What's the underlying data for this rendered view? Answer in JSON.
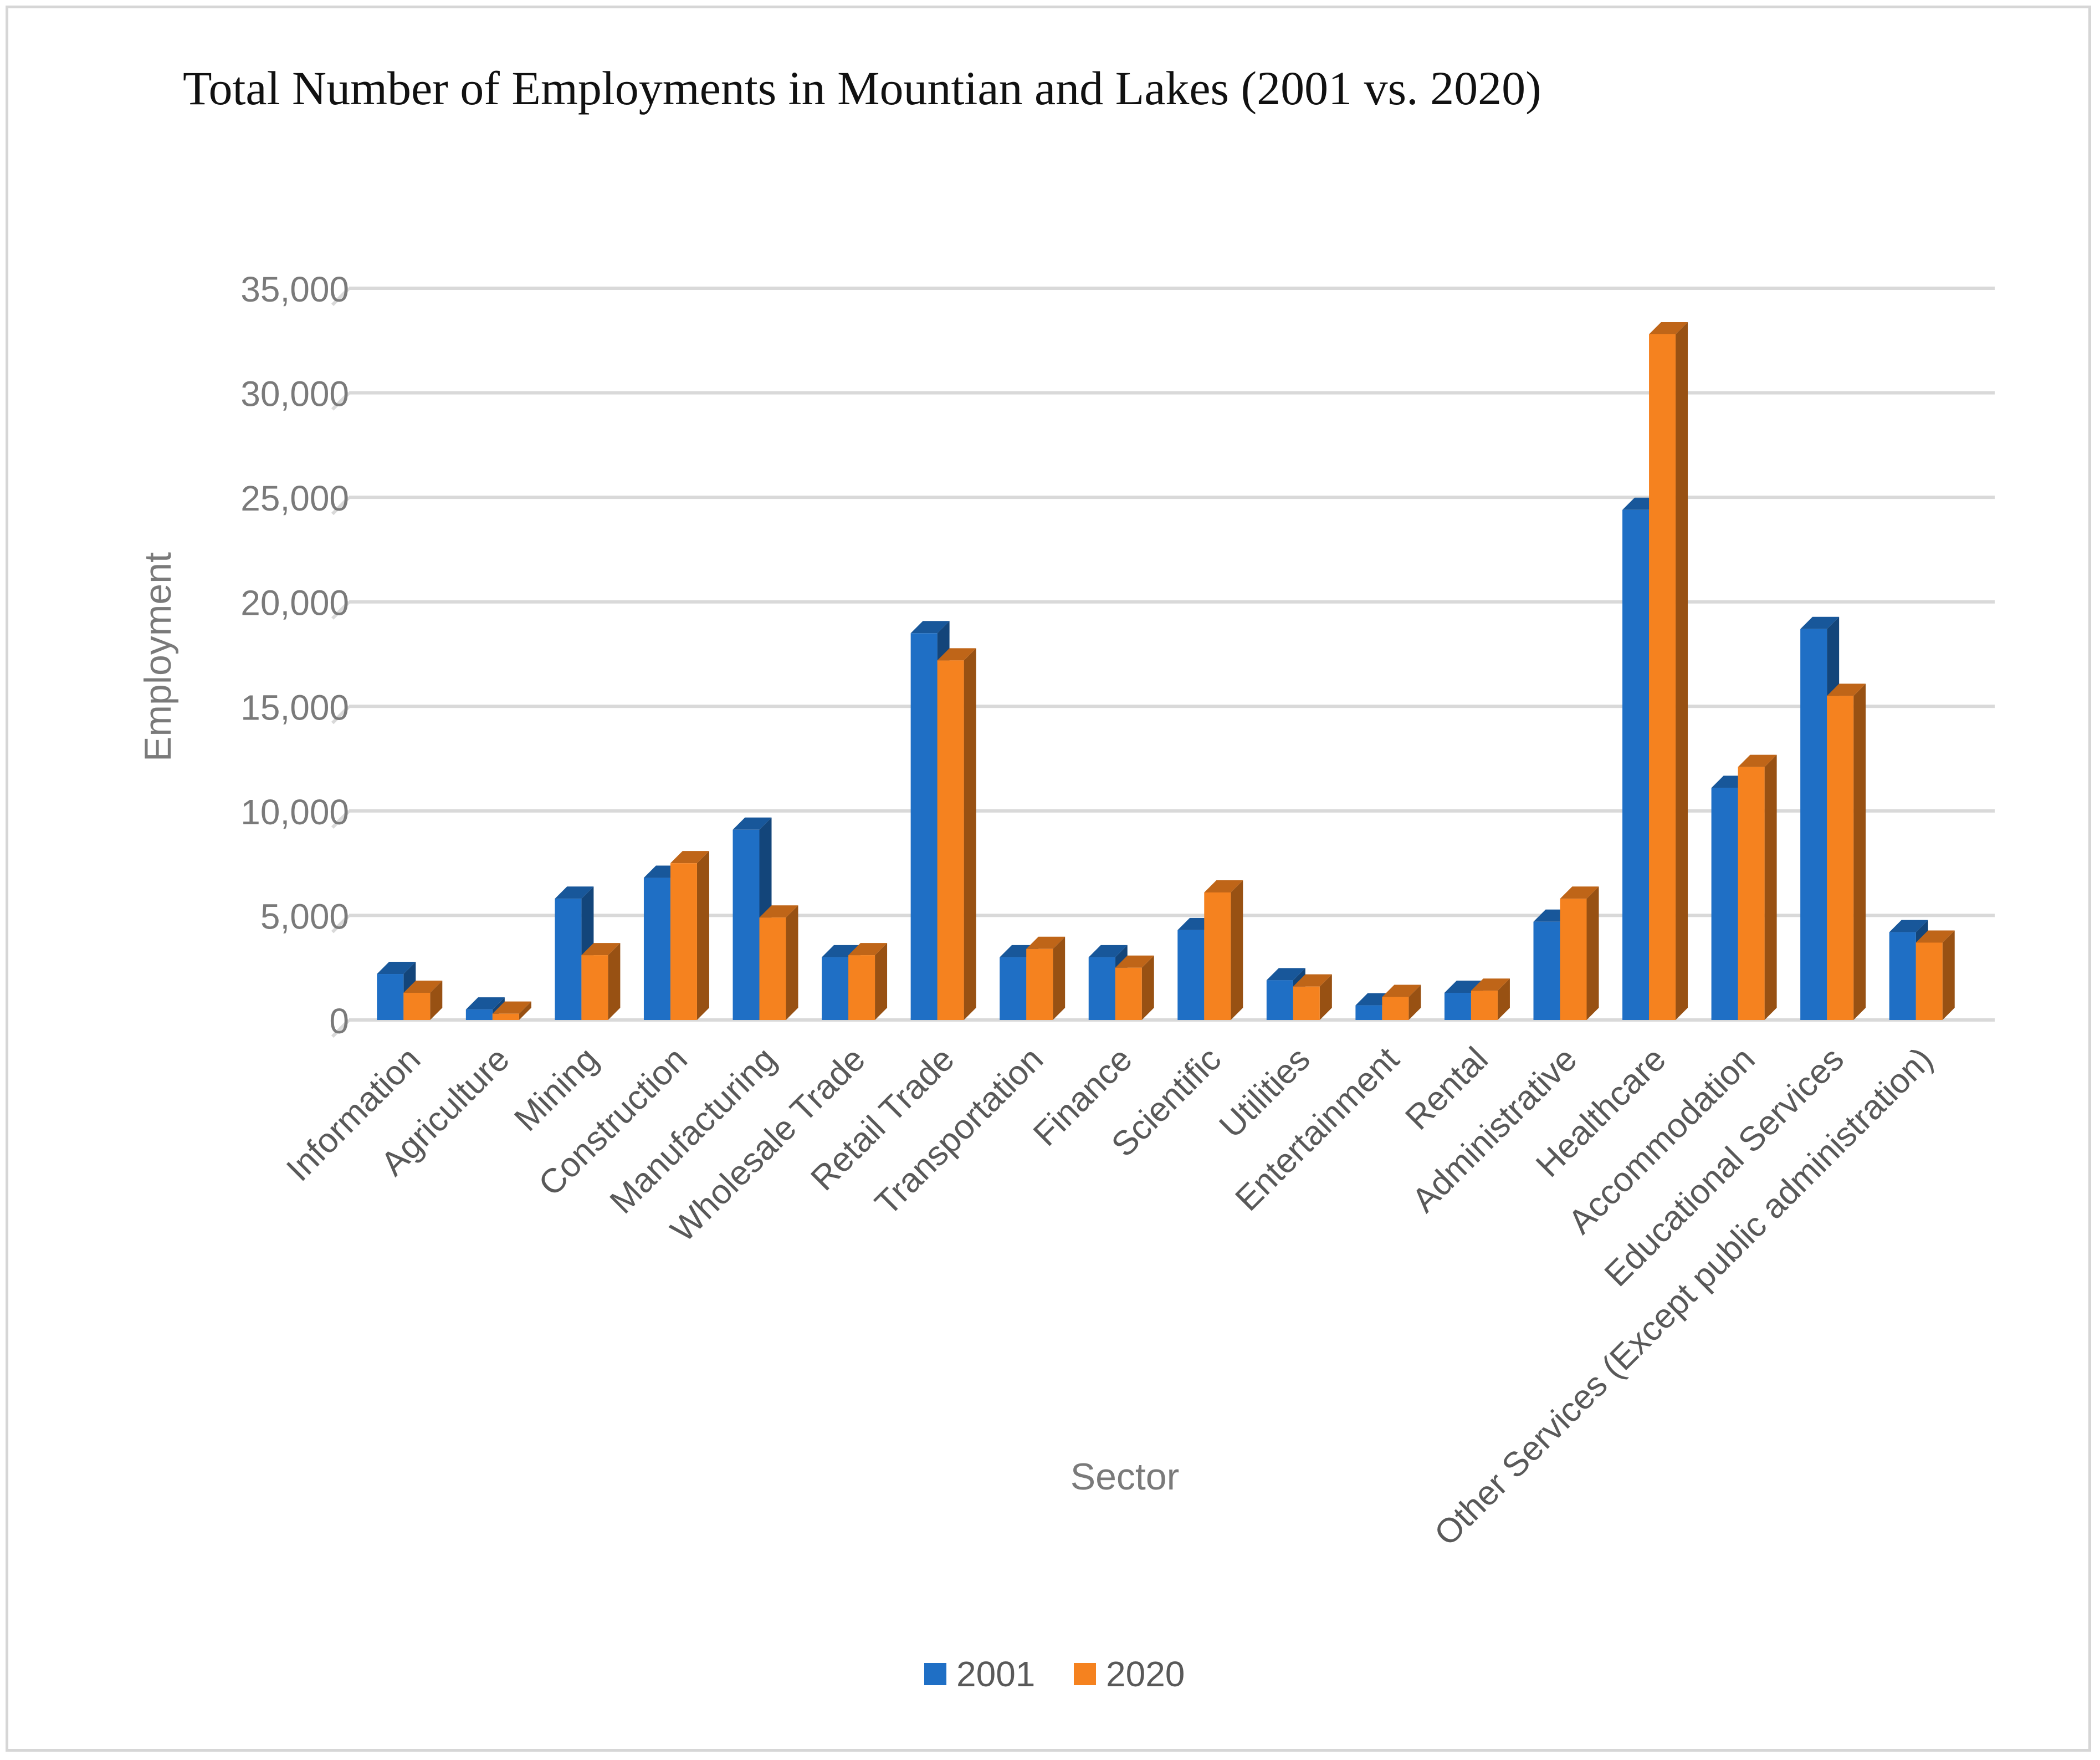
{
  "chart_data": {
    "type": "bar",
    "title": "Total Number of Employments in Mountian and Lakes (2001 vs. 2020)",
    "xlabel": "Sector",
    "ylabel": "Employment",
    "ylim": [
      0,
      35000
    ],
    "yticks": [
      0,
      5000,
      10000,
      15000,
      20000,
      25000,
      30000,
      35000
    ],
    "ytick_labels": [
      "0",
      "5,000",
      "10,000",
      "15,000",
      "20,000",
      "25,000",
      "30,000",
      "35,000"
    ],
    "grid": true,
    "legend_position": "bottom",
    "categories": [
      "Information",
      "Agriculture",
      "Mining",
      "Construction",
      "Manufacturing",
      "Wholesale Trade",
      "Retail Trade",
      "Transportation",
      "Finance",
      "Scientific",
      "Utilities",
      "Entertainment",
      "Rental",
      "Administrative",
      "Healthcare",
      "Accommodation",
      "Educational Services",
      "Other Services (Except public administration)"
    ],
    "series": [
      {
        "name": "2001",
        "color": "#1f6fc5",
        "values": [
          2200,
          500,
          5800,
          6800,
          9100,
          3000,
          18500,
          3000,
          3000,
          4300,
          1900,
          700,
          1300,
          4700,
          24400,
          11100,
          18700,
          4200
        ]
      },
      {
        "name": "2020",
        "color": "#f5821f",
        "values": [
          1300,
          300,
          3100,
          7500,
          4900,
          3100,
          17200,
          3400,
          2500,
          6100,
          1600,
          1100,
          1400,
          5800,
          32800,
          12100,
          15500,
          3700
        ]
      }
    ]
  }
}
